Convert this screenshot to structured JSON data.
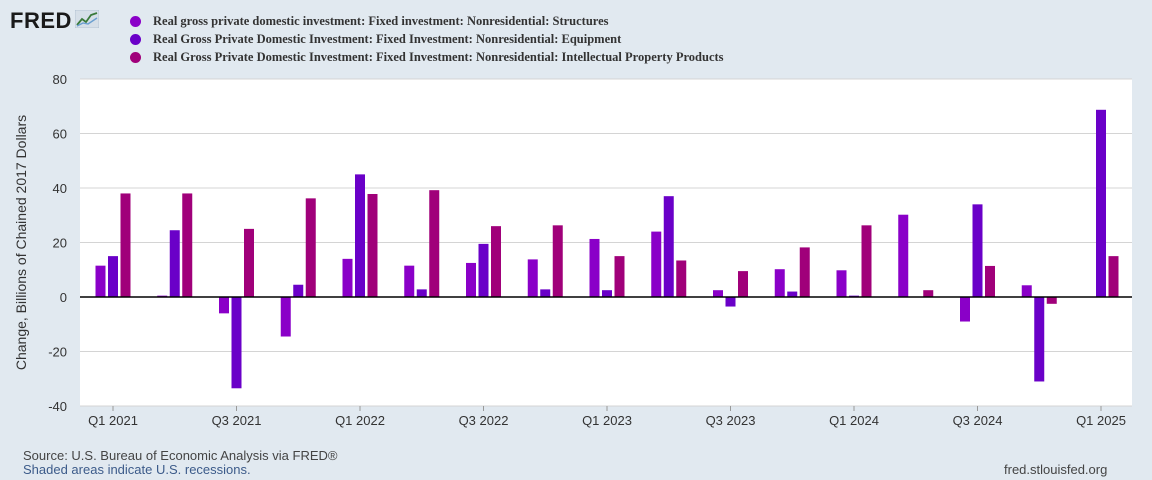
{
  "header": {
    "logo_text": "FRED",
    "logo_icon": "fred-chart-line-icon"
  },
  "legend": {
    "items": [
      {
        "label": "Real gross private domestic investment: Fixed investment: Nonresidential: Structures",
        "color": "#8a00c8"
      },
      {
        "label": "Real Gross Private Domestic Investment: Fixed Investment: Nonresidential: Equipment",
        "color": "#6a00c8"
      },
      {
        "label": "Real Gross Private Domestic Investment: Fixed Investment: Nonresidential: Intellectual Property Products",
        "color": "#a0007a"
      }
    ]
  },
  "footer": {
    "source": "Source: U.S. Bureau of Economic Analysis via FRED®",
    "note": "Shaded areas indicate U.S. recessions.",
    "url": "fred.stlouisfed.org"
  },
  "chart_data": {
    "type": "bar",
    "title": "",
    "xlabel": "",
    "ylabel": "Change, Billions of Chained 2017 Dollars",
    "ylim": [
      -40,
      80
    ],
    "yticks": [
      -40,
      -20,
      0,
      20,
      40,
      60,
      80
    ],
    "grid": true,
    "legend_position": "top",
    "categories": [
      "Q1 2021",
      "Q2 2021",
      "Q3 2021",
      "Q4 2021",
      "Q1 2022",
      "Q2 2022",
      "Q3 2022",
      "Q4 2022",
      "Q1 2023",
      "Q2 2023",
      "Q3 2023",
      "Q4 2023",
      "Q1 2024",
      "Q2 2024",
      "Q3 2024",
      "Q4 2024",
      "Q1 2025"
    ],
    "tick_labels": [
      "Q1 2021",
      "Q3 2021",
      "Q1 2022",
      "Q3 2022",
      "Q1 2023",
      "Q3 2023",
      "Q1 2024",
      "Q3 2024",
      "Q1 2025"
    ],
    "series": [
      {
        "name": "Real gross private domestic investment: Fixed investment: Nonresidential: Structures",
        "color": "#8a00c8",
        "values": [
          11.5,
          0.5,
          -6,
          -14.5,
          14,
          11.5,
          12.5,
          13.8,
          21.3,
          24,
          2.5,
          10.2,
          9.8,
          30.2,
          -9,
          4.3,
          null
        ]
      },
      {
        "name": "Real Gross Private Domestic Investment: Fixed Investment: Nonresidential: Equipment",
        "color": "#6a00c8",
        "values": [
          15,
          24.5,
          -33.5,
          4.5,
          45,
          2.8,
          19.5,
          2.8,
          2.5,
          37,
          -3.5,
          2,
          0.5,
          null,
          34,
          -31,
          68.7
        ]
      },
      {
        "name": "Real Gross Private Domestic Investment: Fixed Investment: Nonresidential: Intellectual Property Products",
        "color": "#a0007a",
        "values": [
          38,
          38,
          25,
          36.2,
          37.8,
          39.2,
          26,
          26.3,
          15,
          13.4,
          9.5,
          18.2,
          26.3,
          2.5,
          11.4,
          -2.5,
          15
        ]
      }
    ]
  }
}
